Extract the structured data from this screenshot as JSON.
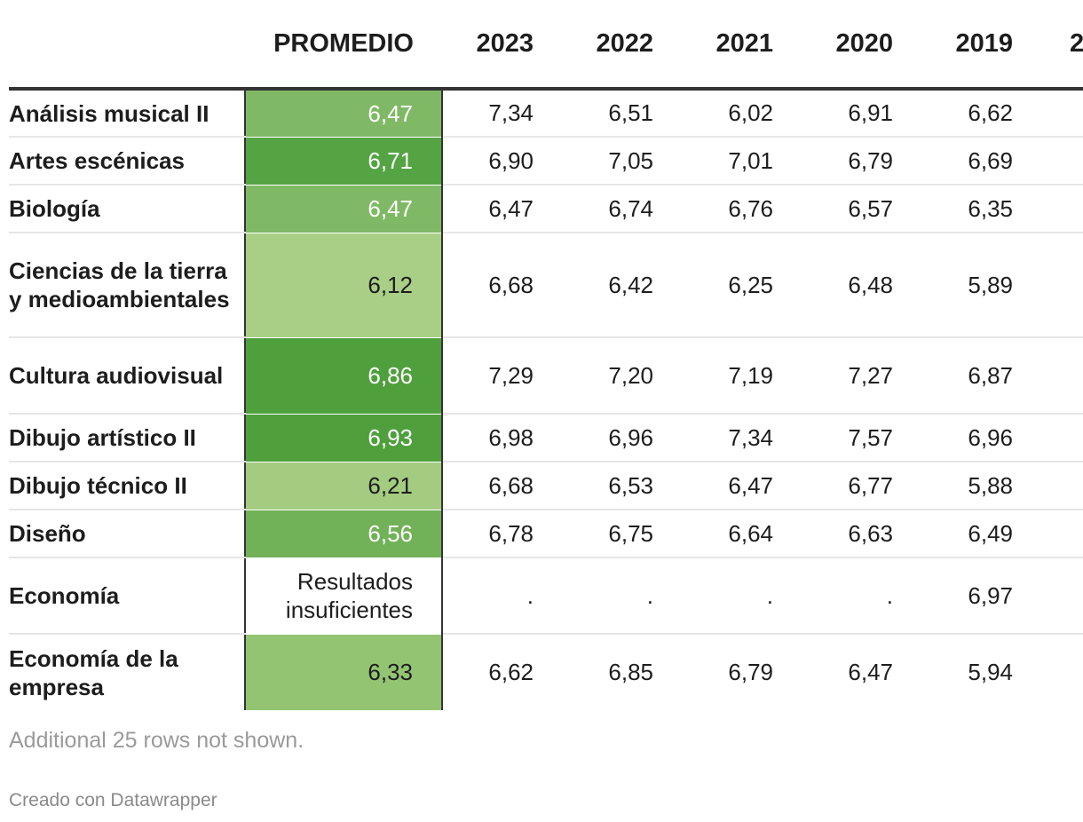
{
  "chart_data": {
    "type": "table",
    "title": "",
    "columns": [
      "",
      "PROMEDIO",
      "2023",
      "2022",
      "2021",
      "2020",
      "2019",
      "2"
    ],
    "rows": [
      {
        "subject": "Análisis musical II",
        "promedio": "6,47",
        "values": [
          "7,34",
          "6,51",
          "6,02",
          "6,91",
          "6,62"
        ],
        "color": "#7fb965",
        "text": "#ffffff"
      },
      {
        "subject": "Artes escénicas",
        "promedio": "6,71",
        "values": [
          "6,90",
          "7,05",
          "7,01",
          "6,79",
          "6,69"
        ],
        "color": "#54a443",
        "text": "#ffffff"
      },
      {
        "subject": "Biología",
        "promedio": "6,47",
        "values": [
          "6,47",
          "6,74",
          "6,76",
          "6,57",
          "6,35"
        ],
        "color": "#7fb965",
        "text": "#ffffff"
      },
      {
        "subject": "Ciencias de la tierra y medioambientales",
        "promedio": "6,12",
        "values": [
          "6,68",
          "6,42",
          "6,25",
          "6,48",
          "5,89"
        ],
        "color": "#a9cf86",
        "text": "#1d1d1d"
      },
      {
        "subject": "Cultura audiovisual",
        "promedio": "6,86",
        "values": [
          "7,29",
          "7,20",
          "7,19",
          "7,27",
          "6,87"
        ],
        "color": "#4f9f3d",
        "text": "#ffffff"
      },
      {
        "subject": "Dibujo artístico II",
        "promedio": "6,93",
        "values": [
          "6,98",
          "6,96",
          "7,34",
          "7,57",
          "6,96"
        ],
        "color": "#4f9f3d",
        "text": "#ffffff"
      },
      {
        "subject": "Dibujo técnico II",
        "promedio": "6,21",
        "values": [
          "6,68",
          "6,53",
          "6,47",
          "6,77",
          "5,88"
        ],
        "color": "#a3cc80",
        "text": "#1d1d1d"
      },
      {
        "subject": "Diseño",
        "promedio": "6,56",
        "values": [
          "6,78",
          "6,75",
          "6,64",
          "6,63",
          "6,49"
        ],
        "color": "#71b158",
        "text": "#ffffff"
      },
      {
        "subject": "Economía",
        "promedio": "Resultados insuficientes",
        "values": [
          ".",
          ".",
          ".",
          ".",
          "6,97"
        ],
        "color": "#ffffff",
        "text": "#1d1d1d"
      },
      {
        "subject": "Economía de la empresa",
        "promedio": "6,33",
        "values": [
          "6,62",
          "6,85",
          "6,79",
          "6,47",
          "5,94"
        ],
        "color": "#93c472",
        "text": "#1d1d1d"
      }
    ],
    "footnote": "Additional 25 rows not shown.",
    "credit": "Creado con Datawrapper"
  }
}
